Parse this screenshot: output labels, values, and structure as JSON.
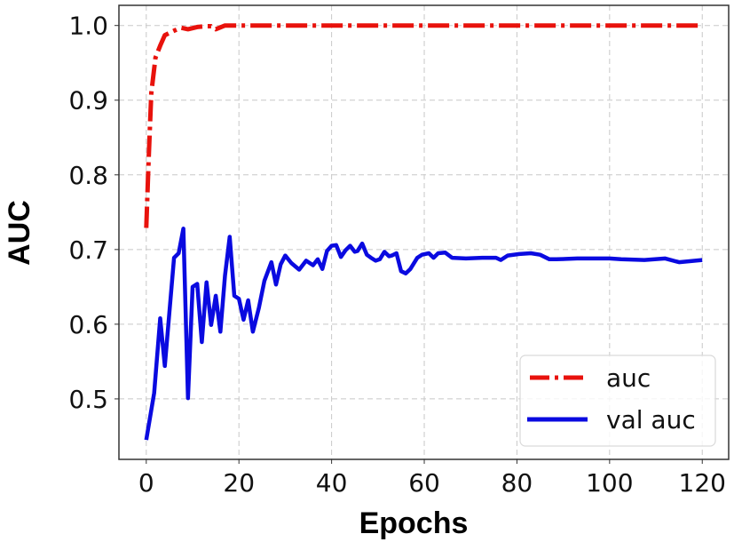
{
  "chart_data": {
    "type": "line",
    "title": "",
    "xlabel": "Epochs",
    "ylabel": "AUC",
    "xlim": [
      -5.9,
      125.7
    ],
    "ylim": [
      0.419,
      1.027
    ],
    "xticks": [
      0,
      20,
      40,
      60,
      80,
      100,
      120
    ],
    "xtick_labels": [
      "0",
      "20",
      "40",
      "60",
      "80",
      "100",
      "120"
    ],
    "yticks": [
      0.5,
      0.6,
      0.7,
      0.8,
      0.9,
      1.0
    ],
    "ytick_labels": [
      "0.5",
      "0.6",
      "0.7",
      "0.8",
      "0.9",
      "1.0"
    ],
    "grid": true,
    "legend_position": "lower right",
    "series": [
      {
        "name": "auc",
        "color": "#e8120c",
        "style": "dashdot",
        "x": [
          0,
          0.5,
          0.8,
          1.1,
          1.6,
          2,
          3,
          4,
          5,
          6,
          7.5,
          9,
          11,
          13,
          14,
          15,
          17,
          20,
          25,
          30,
          40,
          50,
          60,
          70,
          80,
          90,
          100,
          110,
          120
        ],
        "y": [
          0.729,
          0.818,
          0.866,
          0.91,
          0.937,
          0.957,
          0.973,
          0.987,
          0.99,
          0.993,
          0.997,
          0.995,
          0.998,
          0.999,
          0.999,
          0.995,
          1.0,
          1.0,
          1.0,
          1.0,
          1.0,
          1.0,
          1.0,
          1.0,
          1.0,
          1.0,
          1.0,
          1.0,
          1.0
        ]
      },
      {
        "name": "val auc",
        "color": "#0a0ae0",
        "style": "solid",
        "x": [
          0,
          1.7,
          3,
          4,
          6,
          7,
          8,
          9,
          10,
          11,
          12,
          13,
          14,
          15,
          16,
          17,
          18,
          19,
          20,
          21,
          22,
          23,
          24.3,
          25.5,
          27,
          28,
          29,
          30,
          31.3,
          33,
          34.5,
          36,
          37,
          38,
          39,
          40,
          41,
          42,
          43,
          44,
          45,
          45.6,
          46.6,
          47.6,
          48.5,
          49.5,
          50.4,
          51.4,
          52.4,
          53,
          54,
          55,
          56,
          57,
          58.5,
          59.5,
          61,
          62,
          63,
          64.5,
          66,
          69,
          72.5,
          75.5,
          76.5,
          78,
          80.5,
          83,
          85,
          87,
          88.5,
          93,
          100,
          102.5,
          107.5,
          112,
          115,
          120
        ],
        "y": [
          0.445,
          0.508,
          0.608,
          0.544,
          0.689,
          0.695,
          0.728,
          0.501,
          0.65,
          0.654,
          0.576,
          0.656,
          0.599,
          0.638,
          0.59,
          0.665,
          0.717,
          0.638,
          0.634,
          0.606,
          0.632,
          0.59,
          0.622,
          0.658,
          0.683,
          0.653,
          0.68,
          0.692,
          0.682,
          0.673,
          0.685,
          0.679,
          0.687,
          0.674,
          0.698,
          0.705,
          0.706,
          0.69,
          0.699,
          0.705,
          0.697,
          0.698,
          0.708,
          0.693,
          0.689,
          0.685,
          0.687,
          0.697,
          0.691,
          0.692,
          0.695,
          0.671,
          0.668,
          0.674,
          0.689,
          0.693,
          0.695,
          0.689,
          0.695,
          0.696,
          0.689,
          0.688,
          0.689,
          0.689,
          0.686,
          0.692,
          0.694,
          0.695,
          0.693,
          0.687,
          0.687,
          0.688,
          0.688,
          0.687,
          0.686,
          0.688,
          0.683,
          0.686
        ]
      }
    ]
  },
  "labels": {
    "xlabel": "Epochs",
    "ylabel": "AUC",
    "legend": [
      "auc",
      "val auc"
    ]
  }
}
